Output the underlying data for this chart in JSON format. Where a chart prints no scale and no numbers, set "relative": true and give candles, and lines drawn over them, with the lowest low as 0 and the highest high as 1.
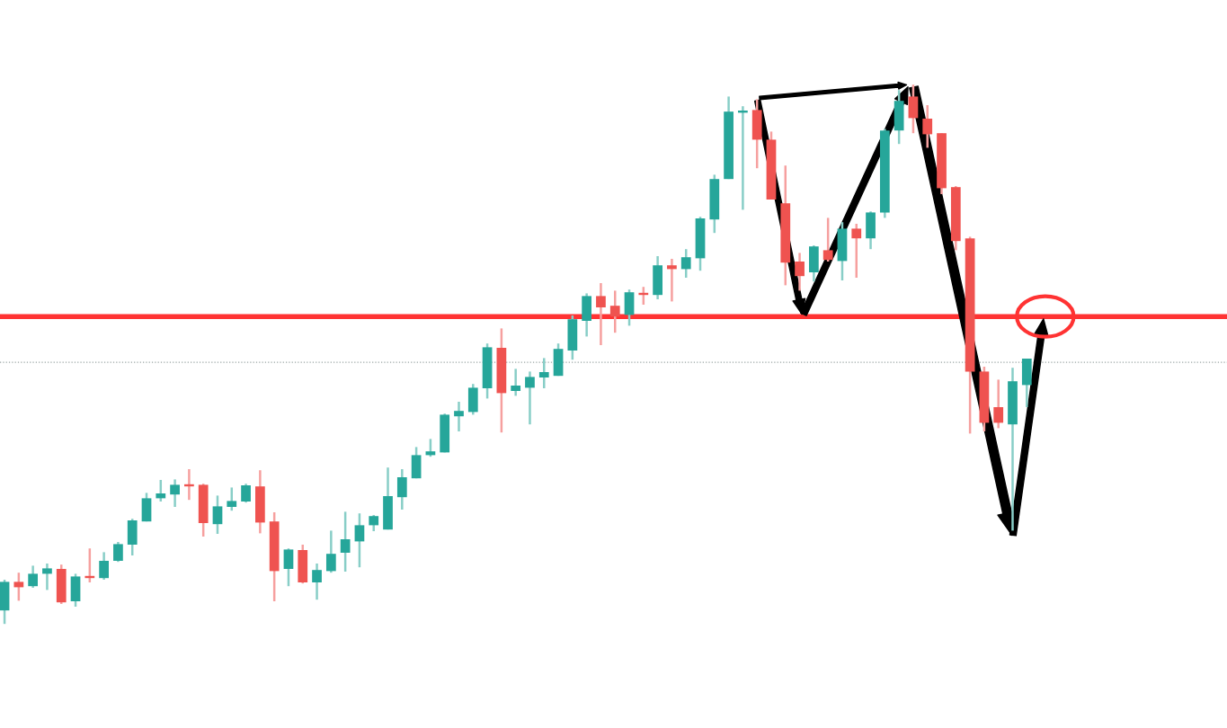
{
  "chart_data": {
    "type": "candlestick",
    "relative": true,
    "categories": [
      null,
      null,
      null,
      null,
      null,
      null,
      null,
      null,
      null,
      null,
      null,
      null,
      null,
      null,
      null,
      null,
      null,
      null,
      null,
      null,
      null,
      null,
      null,
      null,
      null,
      null,
      null,
      null,
      null,
      null,
      null,
      null,
      null,
      null,
      null,
      null,
      null,
      null,
      null,
      null,
      null,
      null,
      null,
      null,
      null,
      null,
      null,
      null,
      null,
      null,
      null,
      null,
      null,
      null,
      null,
      null,
      null,
      null,
      null,
      null,
      null,
      null,
      null,
      null,
      null,
      null,
      null,
      null,
      null,
      null,
      null,
      null,
      null
    ],
    "ohlc": [
      [
        0.025,
        0.082,
        0,
        0.078
      ],
      [
        0.078,
        0.095,
        0.043,
        0.068
      ],
      [
        0.07,
        0.108,
        0.067,
        0.093
      ],
      [
        0.093,
        0.112,
        0.063,
        0.103
      ],
      [
        0.102,
        0.11,
        0.037,
        0.04
      ],
      [
        0.042,
        0.093,
        0.032,
        0.088
      ],
      [
        0.088,
        0.14,
        0.077,
        0.085
      ],
      [
        0.085,
        0.133,
        0.082,
        0.117
      ],
      [
        0.117,
        0.152,
        0.115,
        0.148
      ],
      [
        0.147,
        0.195,
        0.127,
        0.192
      ],
      [
        0.19,
        0.243,
        0.19,
        0.233
      ],
      [
        0.233,
        0.267,
        0.227,
        0.242
      ],
      [
        0.24,
        0.268,
        0.217,
        0.258
      ],
      [
        0.258,
        0.287,
        0.23,
        0.255
      ],
      [
        0.258,
        0.26,
        0.162,
        0.187
      ],
      [
        0.185,
        0.238,
        0.167,
        0.218
      ],
      [
        0.217,
        0.253,
        0.21,
        0.228
      ],
      [
        0.227,
        0.26,
        0.225,
        0.257
      ],
      [
        0.255,
        0.285,
        0.168,
        0.188
      ],
      [
        0.19,
        0.207,
        0.042,
        0.098
      ],
      [
        0.102,
        0.14,
        0.07,
        0.138
      ],
      [
        0.137,
        0.147,
        0.075,
        0.077
      ],
      [
        0.077,
        0.112,
        0.045,
        0.1
      ],
      [
        0.098,
        0.173,
        0.095,
        0.13
      ],
      [
        0.132,
        0.208,
        0.097,
        0.157
      ],
      [
        0.153,
        0.205,
        0.105,
        0.183
      ],
      [
        0.183,
        0.202,
        0.172,
        0.2
      ],
      [
        0.175,
        0.29,
        0.175,
        0.237
      ],
      [
        0.235,
        0.287,
        0.212,
        0.272
      ],
      [
        0.27,
        0.328,
        0.27,
        0.313
      ],
      [
        0.313,
        0.343,
        0.31,
        0.32
      ],
      [
        0.318,
        0.39,
        0.318,
        0.388
      ],
      [
        0.385,
        0.412,
        0.357,
        0.395
      ],
      [
        0.393,
        0.445,
        0.388,
        0.438
      ],
      [
        0.437,
        0.52,
        0.418,
        0.513
      ],
      [
        0.512,
        0.548,
        0.355,
        0.428
      ],
      [
        0.432,
        0.473,
        0.423,
        0.442
      ],
      [
        0.438,
        0.468,
        0.37,
        0.458
      ],
      [
        0.457,
        0.493,
        0.437,
        0.467
      ],
      [
        0.46,
        0.52,
        0.46,
        0.51
      ],
      [
        0.507,
        0.572,
        0.49,
        0.565
      ],
      [
        0.562,
        0.613,
        0.533,
        0.608
      ],
      [
        0.608,
        0.632,
        0.517,
        0.587
      ],
      [
        0.59,
        0.618,
        0.54,
        0.57
      ],
      [
        0.573,
        0.62,
        0.553,
        0.615
      ],
      [
        0.613,
        0.625,
        0.592,
        0.61
      ],
      [
        0.61,
        0.682,
        0.602,
        0.665
      ],
      [
        0.665,
        0.677,
        0.598,
        0.658
      ],
      [
        0.658,
        0.695,
        0.642,
        0.68
      ],
      [
        0.678,
        0.755,
        0.655,
        0.752
      ],
      [
        0.75,
        0.833,
        0.725,
        0.825
      ],
      [
        0.825,
        0.978,
        0.825,
        0.95
      ],
      [
        0.948,
        0.96,
        0.768,
        0.95
      ],
      [
        0.953,
        0.973,
        0.845,
        0.898
      ],
      [
        0.898,
        0.913,
        0.787,
        0.787
      ],
      [
        0.78,
        0.85,
        0.628,
        0.67
      ],
      [
        0.672,
        0.688,
        0.618,
        0.645
      ],
      [
        0.652,
        0.702,
        0.635,
        0.7
      ],
      [
        0.693,
        0.753,
        0.672,
        0.675
      ],
      [
        0.673,
        0.745,
        0.637,
        0.733
      ],
      [
        0.733,
        0.742,
        0.642,
        0.715
      ],
      [
        0.715,
        0.765,
        0.695,
        0.763
      ],
      [
        0.763,
        0.918,
        0.753,
        0.915
      ],
      [
        0.915,
        0.99,
        0.89,
        0.97
      ],
      [
        0.978,
        1,
        0.91,
        0.938
      ],
      [
        0.937,
        0.962,
        0.883,
        0.908
      ],
      [
        0.91,
        0.91,
        0.797,
        0.808
      ],
      [
        0.81,
        0.812,
        0.693,
        0.71
      ],
      [
        0.715,
        0.718,
        0.353,
        0.468
      ],
      [
        0.468,
        0.477,
        0.357,
        0.373
      ],
      [
        0.402,
        0.453,
        0.363,
        0.373
      ],
      [
        0.37,
        0.475,
        0.173,
        0.45
      ],
      [
        0.443,
        0.492,
        0.402,
        0.492
      ]
    ],
    "colors": [
      "#26a69a",
      "#ef5350",
      "#26a69a",
      "#26a69a",
      "#ef5350",
      "#26a69a",
      "#ef5350",
      "#26a69a",
      "#26a69a",
      "#26a69a",
      "#26a69a",
      "#26a69a",
      "#26a69a",
      "#ef5350",
      "#ef5350",
      "#26a69a",
      "#26a69a",
      "#26a69a",
      "#ef5350",
      "#ef5350",
      "#26a69a",
      "#ef5350",
      "#26a69a",
      "#26a69a",
      "#26a69a",
      "#26a69a",
      "#26a69a",
      "#26a69a",
      "#26a69a",
      "#26a69a",
      "#26a69a",
      "#26a69a",
      "#26a69a",
      "#26a69a",
      "#26a69a",
      "#ef5350",
      "#26a69a",
      "#26a69a",
      "#26a69a",
      "#26a69a",
      "#26a69a",
      "#26a69a",
      "#ef5350",
      "#ef5350",
      "#26a69a",
      "#ef5350",
      "#26a69a",
      "#ef5350",
      "#26a69a",
      "#26a69a",
      "#26a69a",
      "#26a69a",
      "#26a69a",
      "#ef5350",
      "#ef5350",
      "#ef5350",
      "#ef5350",
      "#26a69a",
      "#ef5350",
      "#26a69a",
      "#ef5350",
      "#26a69a",
      "#26a69a",
      "#26a69a",
      "#ef5350",
      "#ef5350",
      "#ef5350",
      "#ef5350",
      "#ef5350",
      "#ef5350",
      "#ef5350",
      "#26a69a",
      "#26a69a"
    ],
    "ref_lines": [
      {
        "axis": "y",
        "value": 0.57,
        "color": "#ff3333",
        "line_style": "solid"
      },
      {
        "axis": "y",
        "value": 0.485,
        "color": "#9aa5a4",
        "line_style": "dotted"
      }
    ]
  }
}
